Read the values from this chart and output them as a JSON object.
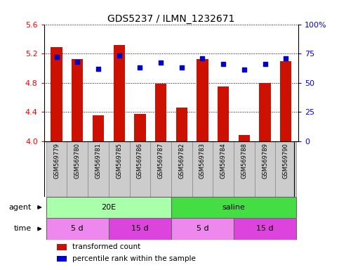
{
  "title": "GDS5237 / ILMN_1232671",
  "samples": [
    "GSM569779",
    "GSM569780",
    "GSM569781",
    "GSM569785",
    "GSM569786",
    "GSM569787",
    "GSM569782",
    "GSM569783",
    "GSM569784",
    "GSM569788",
    "GSM569789",
    "GSM569790"
  ],
  "bar_values": [
    5.285,
    5.12,
    4.35,
    5.32,
    4.37,
    4.79,
    4.46,
    5.12,
    4.75,
    4.08,
    4.8,
    5.1
  ],
  "dot_percentiles": [
    72,
    68,
    62,
    73,
    63,
    67,
    63,
    71,
    66,
    61,
    66,
    71
  ],
  "ymin": 4.0,
  "ymax": 5.6,
  "yticks": [
    4.0,
    4.4,
    4.8,
    5.2,
    5.6
  ],
  "right_yticks": [
    0,
    25,
    50,
    75,
    100
  ],
  "bar_color": "#CC1100",
  "dot_color": "#0000CC",
  "sample_box_color": "#CCCCCC",
  "agent_groups": [
    {
      "label": "20E",
      "start": 0,
      "end": 6,
      "color": "#AAFFAA"
    },
    {
      "label": "saline",
      "start": 6,
      "end": 12,
      "color": "#44DD44"
    }
  ],
  "time_groups": [
    {
      "label": "5 d",
      "start": 0,
      "end": 3,
      "color": "#EE88EE"
    },
    {
      "label": "15 d",
      "start": 3,
      "end": 6,
      "color": "#DD44DD"
    },
    {
      "label": "5 d",
      "start": 6,
      "end": 9,
      "color": "#EE88EE"
    },
    {
      "label": "15 d",
      "start": 9,
      "end": 12,
      "color": "#DD44DD"
    }
  ],
  "legend_items": [
    {
      "label": "transformed count",
      "color": "#CC1100",
      "marker": "s"
    },
    {
      "label": "percentile rank within the sample",
      "color": "#0000CC",
      "marker": "s"
    }
  ],
  "left_labels": [
    {
      "text": "agent",
      "row": "agent"
    },
    {
      "text": "time",
      "row": "time"
    }
  ]
}
